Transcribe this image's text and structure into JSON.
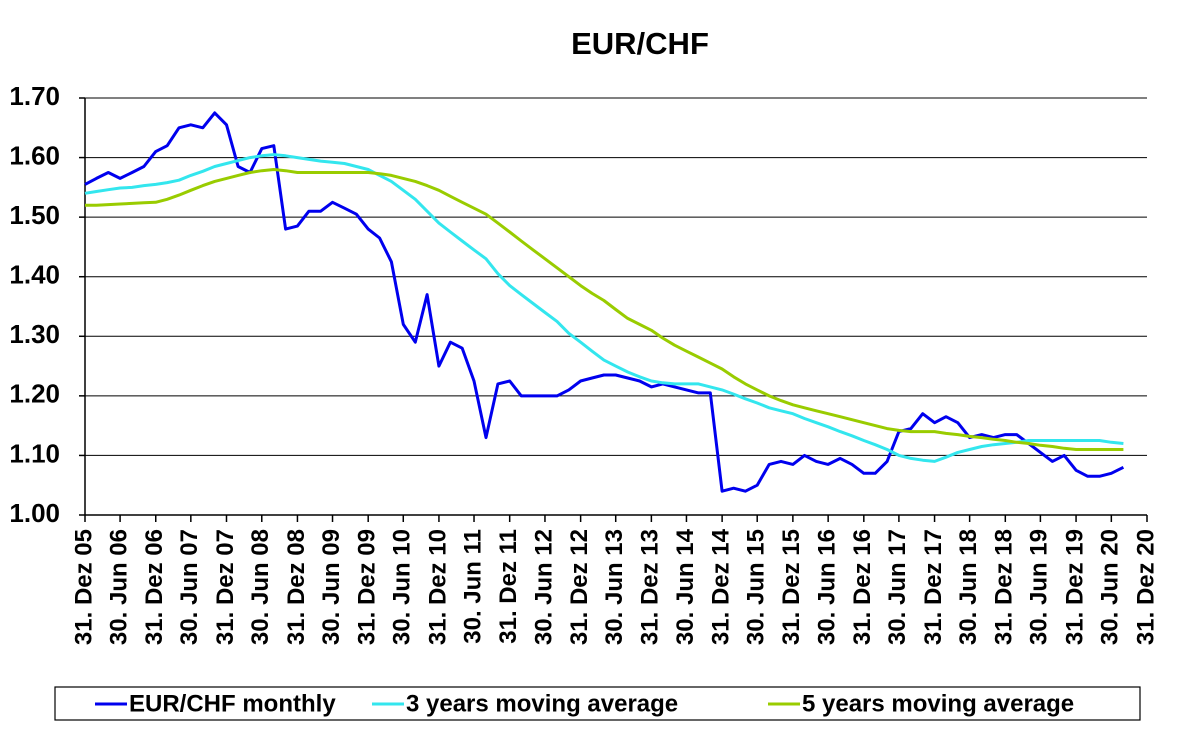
{
  "chart_data": {
    "type": "line",
    "title": "EUR/CHF",
    "x": [
      "2005-12-31",
      "2006-02-28",
      "2006-04-30",
      "2006-06-30",
      "2006-08-31",
      "2006-10-31",
      "2006-12-31",
      "2007-02-28",
      "2007-04-30",
      "2007-06-30",
      "2007-08-31",
      "2007-10-31",
      "2007-12-31",
      "2008-02-29",
      "2008-04-30",
      "2008-06-30",
      "2008-08-31",
      "2008-10-31",
      "2008-12-31",
      "2009-02-28",
      "2009-04-30",
      "2009-06-30",
      "2009-08-31",
      "2009-10-31",
      "2009-12-31",
      "2010-02-28",
      "2010-04-30",
      "2010-06-30",
      "2010-08-31",
      "2010-10-31",
      "2010-12-31",
      "2011-02-28",
      "2011-04-30",
      "2011-06-30",
      "2011-08-31",
      "2011-10-31",
      "2011-12-31",
      "2012-02-29",
      "2012-04-30",
      "2012-06-30",
      "2012-08-31",
      "2012-10-31",
      "2012-12-31",
      "2013-02-28",
      "2013-04-30",
      "2013-06-30",
      "2013-08-31",
      "2013-10-31",
      "2013-12-31",
      "2014-02-28",
      "2014-04-30",
      "2014-06-30",
      "2014-08-31",
      "2014-10-31",
      "2014-12-31",
      "2015-02-28",
      "2015-04-30",
      "2015-06-30",
      "2015-08-31",
      "2015-10-31",
      "2015-12-31",
      "2016-02-29",
      "2016-04-30",
      "2016-06-30",
      "2016-08-31",
      "2016-10-31",
      "2016-12-31",
      "2017-02-28",
      "2017-04-30",
      "2017-06-30",
      "2017-08-31",
      "2017-10-31",
      "2017-12-31",
      "2018-02-28",
      "2018-04-30",
      "2018-06-30",
      "2018-08-31",
      "2018-10-31",
      "2018-12-31",
      "2019-02-28",
      "2019-04-30",
      "2019-06-30",
      "2019-08-31",
      "2019-10-31",
      "2019-12-31",
      "2020-02-29",
      "2020-04-30",
      "2020-06-30",
      "2020-08-31"
    ],
    "series": [
      {
        "name": "EUR/CHF monthly",
        "color": "#0000ee",
        "values": [
          1.555,
          1.565,
          1.575,
          1.565,
          1.575,
          1.585,
          1.61,
          1.62,
          1.65,
          1.655,
          1.65,
          1.675,
          1.655,
          1.585,
          1.575,
          1.615,
          1.62,
          1.48,
          1.485,
          1.51,
          1.51,
          1.525,
          1.515,
          1.505,
          1.48,
          1.465,
          1.425,
          1.32,
          1.29,
          1.37,
          1.25,
          1.29,
          1.28,
          1.225,
          1.13,
          1.22,
          1.225,
          1.2,
          1.2,
          1.2,
          1.2,
          1.21,
          1.225,
          1.23,
          1.235,
          1.235,
          1.23,
          1.225,
          1.215,
          1.22,
          1.215,
          1.21,
          1.205,
          1.205,
          1.04,
          1.045,
          1.04,
          1.05,
          1.085,
          1.09,
          1.085,
          1.1,
          1.09,
          1.085,
          1.095,
          1.085,
          1.07,
          1.07,
          1.09,
          1.14,
          1.145,
          1.17,
          1.155,
          1.165,
          1.155,
          1.13,
          1.135,
          1.13,
          1.135,
          1.135,
          1.12,
          1.105,
          1.09,
          1.1,
          1.075,
          1.065,
          1.065,
          1.07,
          1.08
        ]
      },
      {
        "name": "3 years moving average",
        "color": "#33e6ee",
        "values": [
          1.54,
          1.543,
          1.546,
          1.549,
          1.55,
          1.553,
          1.555,
          1.558,
          1.562,
          1.57,
          1.577,
          1.585,
          1.59,
          1.595,
          1.6,
          1.603,
          1.605,
          1.603,
          1.6,
          1.597,
          1.594,
          1.592,
          1.59,
          1.585,
          1.58,
          1.57,
          1.56,
          1.545,
          1.53,
          1.51,
          1.49,
          1.475,
          1.46,
          1.445,
          1.43,
          1.405,
          1.385,
          1.37,
          1.355,
          1.34,
          1.325,
          1.305,
          1.29,
          1.275,
          1.26,
          1.25,
          1.24,
          1.232,
          1.225,
          1.222,
          1.22,
          1.22,
          1.22,
          1.215,
          1.21,
          1.203,
          1.195,
          1.188,
          1.18,
          1.175,
          1.17,
          1.162,
          1.155,
          1.148,
          1.14,
          1.133,
          1.125,
          1.118,
          1.11,
          1.1,
          1.095,
          1.092,
          1.09,
          1.097,
          1.105,
          1.11,
          1.115,
          1.118,
          1.12,
          1.122,
          1.125,
          1.125,
          1.125,
          1.125,
          1.125,
          1.125,
          1.125,
          1.122,
          1.12
        ]
      },
      {
        "name": "5 years moving average",
        "color": "#99cc00",
        "values": [
          1.52,
          1.52,
          1.521,
          1.522,
          1.523,
          1.524,
          1.525,
          1.53,
          1.537,
          1.545,
          1.553,
          1.56,
          1.565,
          1.57,
          1.575,
          1.578,
          1.58,
          1.578,
          1.575,
          1.575,
          1.575,
          1.575,
          1.575,
          1.575,
          1.575,
          1.573,
          1.57,
          1.565,
          1.56,
          1.553,
          1.545,
          1.535,
          1.525,
          1.515,
          1.505,
          1.49,
          1.475,
          1.46,
          1.445,
          1.43,
          1.415,
          1.4,
          1.385,
          1.372,
          1.36,
          1.345,
          1.33,
          1.32,
          1.31,
          1.297,
          1.285,
          1.275,
          1.265,
          1.255,
          1.245,
          1.232,
          1.22,
          1.21,
          1.2,
          1.192,
          1.185,
          1.18,
          1.175,
          1.17,
          1.165,
          1.16,
          1.155,
          1.15,
          1.145,
          1.142,
          1.14,
          1.14,
          1.14,
          1.137,
          1.135,
          1.132,
          1.13,
          1.127,
          1.125,
          1.122,
          1.12,
          1.117,
          1.115,
          1.112,
          1.11,
          1.11,
          1.11,
          1.11,
          1.11
        ]
      }
    ],
    "xlim": [
      "2005-12-31",
      "2020-12-31"
    ],
    "xticks": [
      {
        "value": "2005-12-31",
        "label": "31. Dez 05"
      },
      {
        "value": "2006-06-30",
        "label": "30. Jun 06"
      },
      {
        "value": "2006-12-31",
        "label": "31. Dez 06"
      },
      {
        "value": "2007-06-30",
        "label": "30. Jun 07"
      },
      {
        "value": "2007-12-31",
        "label": "31. Dez 07"
      },
      {
        "value": "2008-06-30",
        "label": "30. Jun 08"
      },
      {
        "value": "2008-12-31",
        "label": "31. Dez 08"
      },
      {
        "value": "2009-06-30",
        "label": "30. Jun 09"
      },
      {
        "value": "2009-12-31",
        "label": "31. Dez 09"
      },
      {
        "value": "2010-06-30",
        "label": "30. Jun 10"
      },
      {
        "value": "2010-12-31",
        "label": "31. Dez 10"
      },
      {
        "value": "2011-06-30",
        "label": "30. Jun 11"
      },
      {
        "value": "2011-12-31",
        "label": "31. Dez 11"
      },
      {
        "value": "2012-06-30",
        "label": "30. Jun 12"
      },
      {
        "value": "2012-12-31",
        "label": "31. Dez 12"
      },
      {
        "value": "2013-06-30",
        "label": "30. Jun 13"
      },
      {
        "value": "2013-12-31",
        "label": "31. Dez 13"
      },
      {
        "value": "2014-06-30",
        "label": "30. Jun 14"
      },
      {
        "value": "2014-12-31",
        "label": "31. Dez 14"
      },
      {
        "value": "2015-06-30",
        "label": "30. Jun 15"
      },
      {
        "value": "2015-12-31",
        "label": "31. Dez 15"
      },
      {
        "value": "2016-06-30",
        "label": "30. Jun 16"
      },
      {
        "value": "2016-12-31",
        "label": "31. Dez 16"
      },
      {
        "value": "2017-06-30",
        "label": "30. Jun 17"
      },
      {
        "value": "2017-12-31",
        "label": "31. Dez 17"
      },
      {
        "value": "2018-06-30",
        "label": "30. Jun 18"
      },
      {
        "value": "2018-12-31",
        "label": "31. Dez 18"
      },
      {
        "value": "2019-06-30",
        "label": "30. Jun 19"
      },
      {
        "value": "2019-12-31",
        "label": "31. Dez 19"
      },
      {
        "value": "2020-06-30",
        "label": "30. Jun 20"
      },
      {
        "value": "2020-12-31",
        "label": "31. Dez 20"
      }
    ],
    "ylim": [
      1.0,
      1.7
    ],
    "yticks": [
      {
        "value": 1.0,
        "label": "1.00"
      },
      {
        "value": 1.1,
        "label": "1.10"
      },
      {
        "value": 1.2,
        "label": "1.20"
      },
      {
        "value": 1.3,
        "label": "1.30"
      },
      {
        "value": 1.4,
        "label": "1.40"
      },
      {
        "value": 1.5,
        "label": "1.50"
      },
      {
        "value": 1.6,
        "label": "1.60"
      },
      {
        "value": 1.7,
        "label": "1.70"
      }
    ],
    "grid": true,
    "legend": "bottom"
  }
}
